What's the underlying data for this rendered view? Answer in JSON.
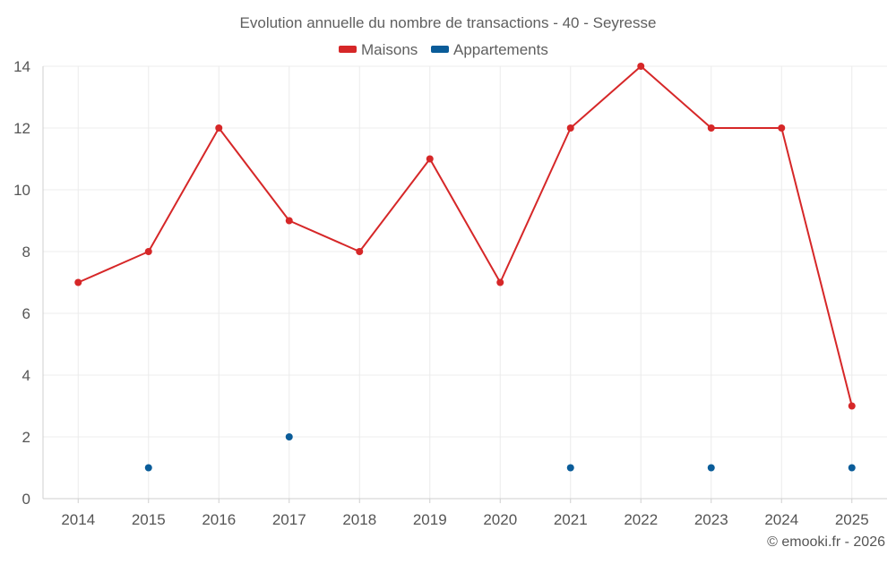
{
  "chart_data": {
    "type": "line",
    "title": "Evolution annuelle du nombre de transactions - 40 - Seyresse",
    "categories": [
      "2014",
      "2015",
      "2016",
      "2017",
      "2018",
      "2019",
      "2020",
      "2021",
      "2022",
      "2023",
      "2024",
      "2025"
    ],
    "series": [
      {
        "name": "Maisons",
        "color": "#d62728",
        "values": [
          7,
          8,
          12,
          9,
          8,
          11,
          7,
          12,
          14,
          12,
          12,
          3
        ],
        "line": true
      },
      {
        "name": "Appartements",
        "color": "#0a5c99",
        "values": [
          null,
          1,
          null,
          2,
          null,
          null,
          null,
          1,
          null,
          1,
          null,
          1
        ],
        "line": false
      }
    ],
    "yticks": [
      0,
      2,
      4,
      6,
      8,
      10,
      12,
      14
    ],
    "ylim": [
      0,
      14
    ],
    "xlabel": "",
    "ylabel": "",
    "grid": true,
    "legend_position": "top-center",
    "credit": "© emooki.fr - 2026"
  }
}
